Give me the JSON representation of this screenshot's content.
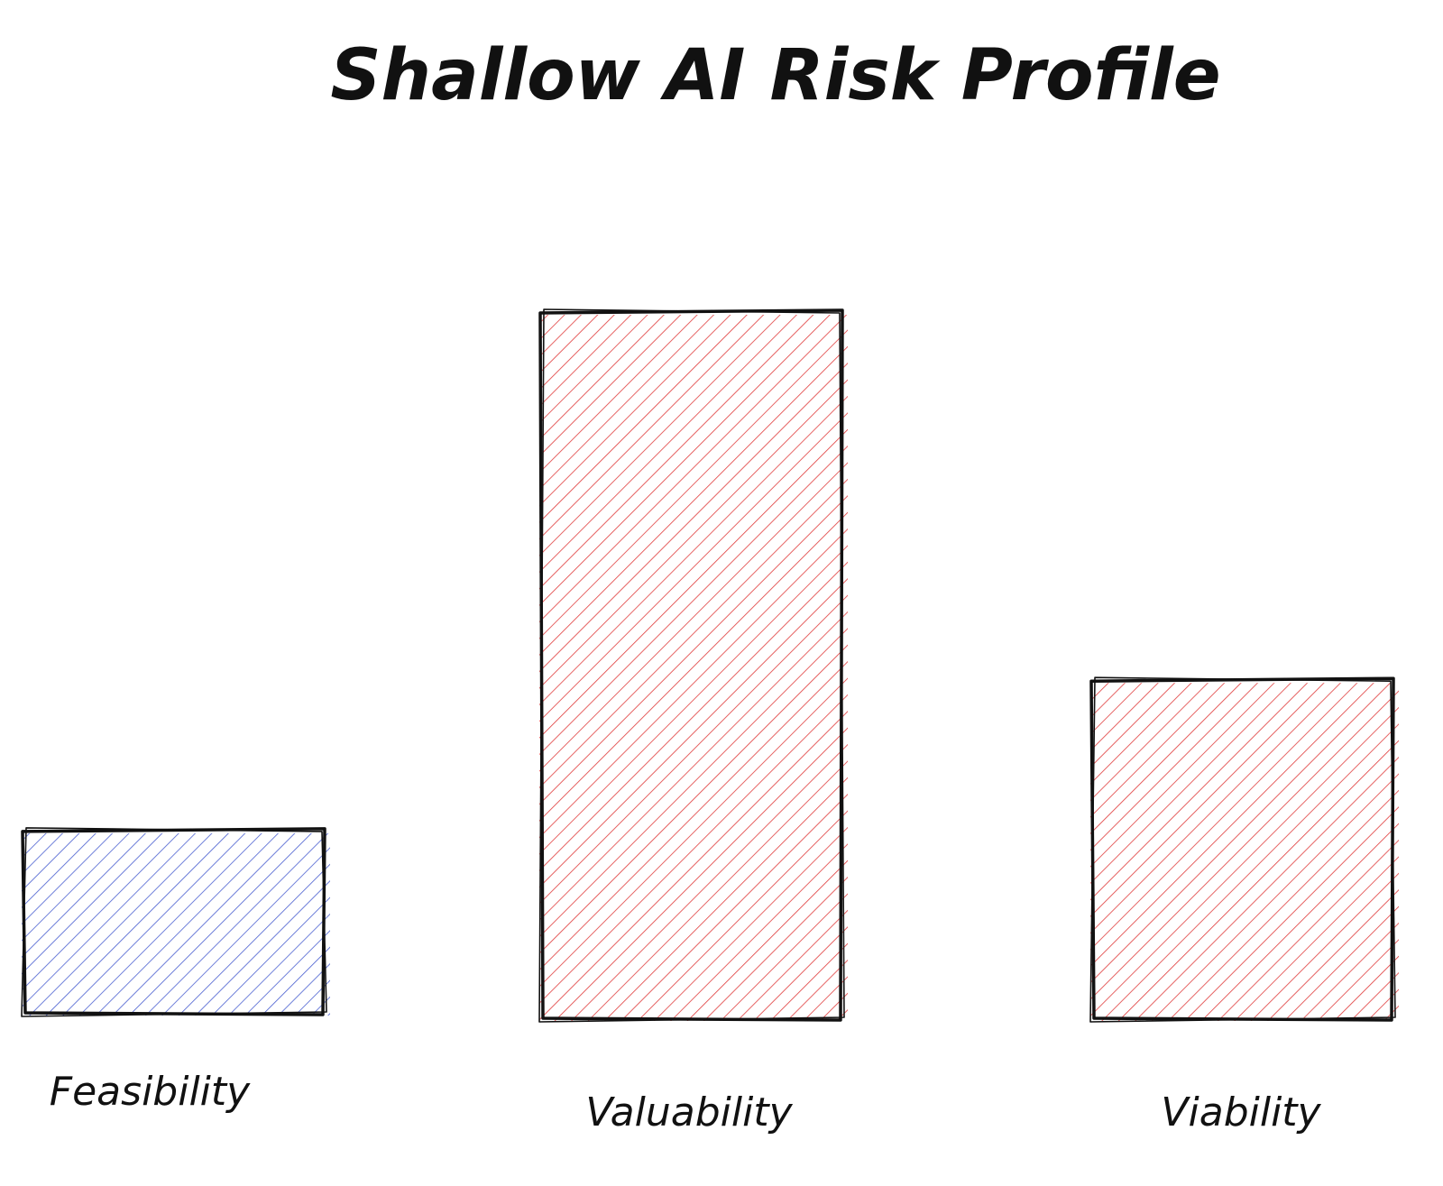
{
  "chart_data": {
    "type": "bar",
    "title": "Shallow AI Risk Profile",
    "categories": [
      "Feasibility",
      "Valuability",
      "Viability"
    ],
    "values": [
      2.6,
      10,
      4.8
    ],
    "ylim": [
      0,
      10
    ],
    "grid": false,
    "show_axes": false,
    "style": "hand-drawn hatched bars",
    "colors": [
      "#4a5fd0",
      "#e03c3c",
      "#e03c3c"
    ]
  }
}
